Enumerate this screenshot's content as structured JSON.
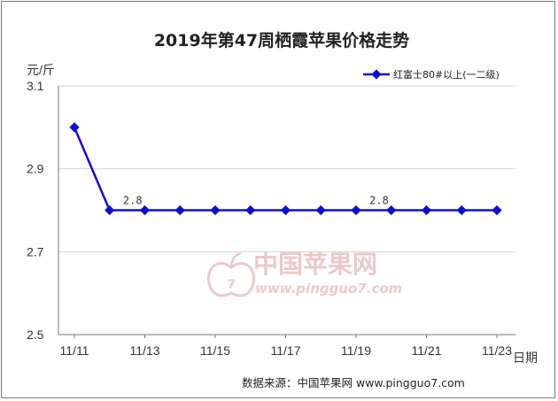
{
  "chart_data": {
    "type": "line",
    "title": "2019年第47周栖霞苹果价格走势",
    "ylabel": "元/斤",
    "xlabel": "日期",
    "ylim": [
      2.5,
      3.1
    ],
    "y_ticks": [
      "2.5",
      "2.7",
      "2.9",
      "3.1"
    ],
    "x_tick_labels": [
      "11/11",
      "11/13",
      "11/15",
      "11/17",
      "11/19",
      "11/21",
      "11/23"
    ],
    "x": [
      "11/11",
      "11/12",
      "11/13",
      "11/14",
      "11/15",
      "11/16",
      "11/17",
      "11/18",
      "11/19",
      "11/20",
      "11/21",
      "11/22",
      "11/23"
    ],
    "series": [
      {
        "name": "红富士80#以上(一二级)",
        "color": "#1010cc",
        "values": [
          3.0,
          2.8,
          2.8,
          2.8,
          2.8,
          2.8,
          2.8,
          2.8,
          2.8,
          2.8,
          2.8,
          2.8,
          2.8
        ]
      }
    ],
    "data_labels": [
      {
        "index": 1,
        "text": "2.8"
      },
      {
        "index": 8,
        "text": "2.8"
      }
    ],
    "grid": "horizontal",
    "legend_position": "top-right"
  },
  "source": "数据来源：中国苹果网 www.pingguo7.com",
  "watermark": {
    "text": "中国苹果网",
    "url": "www.pingguo7.com",
    "color": "#e6b8b8"
  }
}
